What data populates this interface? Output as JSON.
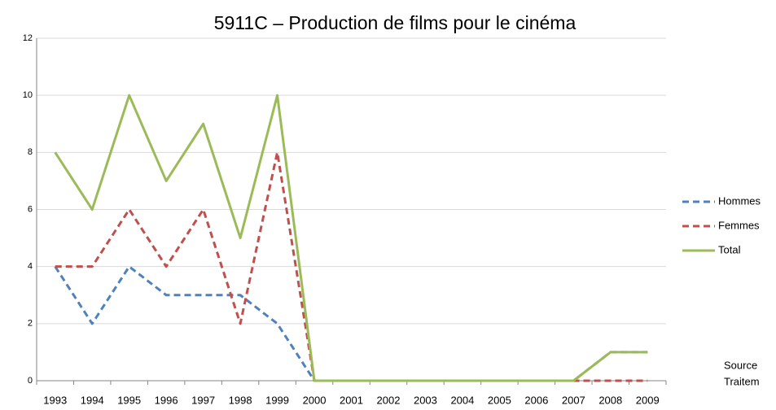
{
  "chart_data": {
    "type": "line",
    "title": "5911C – Production de films pour le cinéma",
    "categories": [
      "1993",
      "1994",
      "1995",
      "1996",
      "1997",
      "1998",
      "1999",
      "2000",
      "2001",
      "2002",
      "2003",
      "2004",
      "2005",
      "2006",
      "2007",
      "2008",
      "2009"
    ],
    "series": [
      {
        "name": "Hommes",
        "color": "#4f81bd",
        "dashed": true,
        "values": [
          4,
          2,
          4,
          3,
          3,
          3,
          2,
          0,
          0,
          0,
          0,
          0,
          0,
          0,
          0,
          1,
          1
        ]
      },
      {
        "name": "Femmes",
        "color": "#c0504d",
        "dashed": true,
        "values": [
          4,
          4,
          6,
          4,
          6,
          2,
          8,
          0,
          0,
          0,
          0,
          0,
          0,
          0,
          0,
          0,
          0
        ]
      },
      {
        "name": "Total",
        "color": "#9bbb59",
        "dashed": false,
        "values": [
          8,
          6,
          10,
          7,
          9,
          5,
          10,
          0,
          0,
          0,
          0,
          0,
          0,
          0,
          0,
          1,
          1
        ]
      }
    ],
    "ylim": [
      0,
      12
    ],
    "yticks": [
      0,
      2,
      4,
      6,
      8,
      10,
      12
    ],
    "grid": true,
    "legend": "right",
    "notes": [
      "Source",
      "Traitem"
    ]
  }
}
